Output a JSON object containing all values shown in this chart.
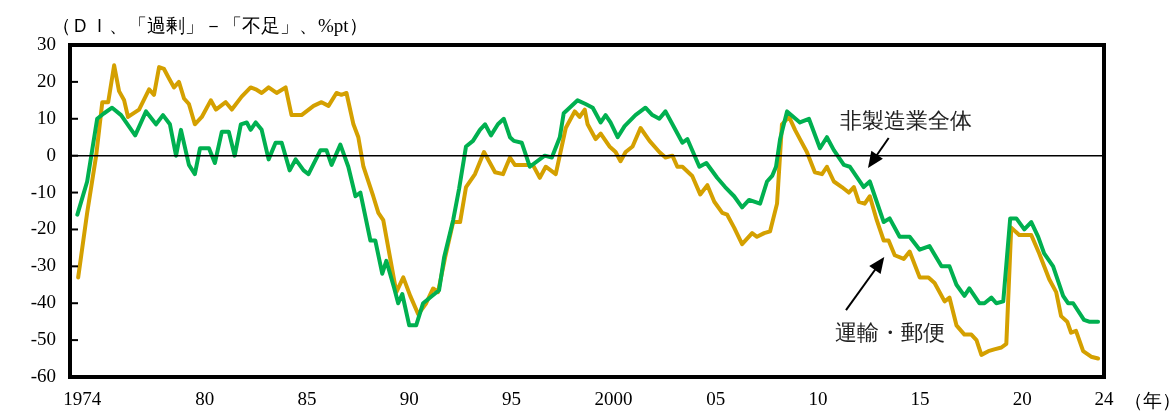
{
  "chart_data": {
    "type": "line",
    "ylabel": "（ＤＩ、「過剰」－「不足」、%pt）",
    "xlabel": "（年）",
    "xlim": [
      1973.4,
      2024
    ],
    "ylim": [
      -60,
      30
    ],
    "yticks": [
      -60,
      -50,
      -40,
      -30,
      -20,
      -10,
      0,
      10,
      20,
      30
    ],
    "xticks": [
      {
        "value": 1974,
        "label": "1974"
      },
      {
        "value": 1980,
        "label": "80"
      },
      {
        "value": 1985,
        "label": "85"
      },
      {
        "value": 1990,
        "label": "90"
      },
      {
        "value": 1995,
        "label": "95"
      },
      {
        "value": 2000,
        "label": "2000"
      },
      {
        "value": 2005,
        "label": "05"
      },
      {
        "value": 2010,
        "label": "10"
      },
      {
        "value": 2015,
        "label": "15"
      },
      {
        "value": 2020,
        "label": "20"
      },
      {
        "value": 2024,
        "label": "24"
      }
    ],
    "ref_lines": [
      {
        "axis": "y",
        "value": 0,
        "color": "#000000"
      }
    ],
    "marker": "none",
    "line_style": "solid",
    "legend": false,
    "series": [
      {
        "name": "非製造業全体",
        "color": "#00b050",
        "x": [
          1973.76,
          1974.24,
          1974.73,
          1975.07,
          1975.46,
          1975.9,
          1976.59,
          1977.12,
          1977.61,
          1977.95,
          1978.29,
          1978.59,
          1978.83,
          1979.22,
          1979.51,
          1979.76,
          1980.2,
          1980.49,
          1980.83,
          1981.17,
          1981.46,
          1981.76,
          1982.05,
          1982.24,
          1982.49,
          1982.78,
          1983.12,
          1983.46,
          1983.76,
          1984.15,
          1984.44,
          1984.83,
          1985.07,
          1985.66,
          1985.95,
          1986.2,
          1986.63,
          1987.02,
          1987.37,
          1987.61,
          1988.1,
          1988.34,
          1988.68,
          1988.88,
          1989.27,
          1989.46,
          1989.66,
          1990.0,
          1990.34,
          1990.68,
          1991.46,
          1991.71,
          1992.15,
          1992.44,
          1992.78,
          1993.12,
          1993.46,
          1993.71,
          1994.0,
          1994.34,
          1994.63,
          1994.93,
          1995.12,
          1995.51,
          1995.9,
          1996.63,
          1996.98,
          1997.37,
          1997.56,
          1997.85,
          1998.24,
          1998.63,
          1998.98,
          1999.37,
          1999.61,
          1999.85,
          2000.2,
          2000.54,
          2001.07,
          2001.56,
          2001.9,
          2002.24,
          2002.54,
          2002.98,
          2003.37,
          2003.61,
          2004.2,
          2004.54,
          2005.07,
          2005.46,
          2005.9,
          2006.29,
          2006.63,
          2007.17,
          2007.51,
          2007.76,
          2007.95,
          2008.15,
          2008.49,
          2009.12,
          2009.56,
          2010.1,
          2010.44,
          2010.78,
          2011.27,
          2011.56,
          2012.24,
          2012.54,
          2013.22,
          2013.51,
          2014.0,
          2014.49,
          2014.98,
          2015.46,
          2016.05,
          2016.44,
          2016.78,
          2017.17,
          2017.41,
          2017.9,
          2018.15,
          2018.49,
          2018.73,
          2019.07,
          2019.41,
          2019.71,
          2020.1,
          2020.44,
          2020.78,
          2021.07,
          2021.51,
          2022.0,
          2022.24,
          2022.49,
          2023.02,
          2023.27,
          2023.71
        ],
        "values": [
          -16,
          -7,
          10,
          11.5,
          13,
          11,
          5.5,
          12,
          8.5,
          11,
          8.5,
          0,
          7,
          -2.5,
          -5,
          2,
          2,
          -2,
          6.5,
          6.5,
          0,
          8.5,
          9,
          7,
          9,
          7,
          -1,
          3.5,
          3.5,
          -4,
          -1,
          -4,
          -5,
          1.5,
          1.5,
          -2.5,
          3,
          -3,
          -11,
          -10,
          -23,
          -23,
          -32,
          -28.5,
          -36,
          -40,
          -37.5,
          -46,
          -46,
          -40,
          -36.5,
          -27.5,
          -17.5,
          -9,
          2.5,
          4,
          7,
          8.5,
          5.5,
          8.5,
          10,
          5,
          4,
          3.5,
          -3,
          0,
          -0.5,
          5,
          11.5,
          13,
          15,
          14,
          13,
          9,
          11,
          9,
          5,
          8,
          11,
          13,
          11,
          10,
          12,
          7.5,
          3.5,
          4.5,
          -3,
          -2,
          -6,
          -8.5,
          -11,
          -14,
          -12,
          -13,
          -7,
          -5.5,
          -3,
          4.5,
          12,
          9,
          10,
          2,
          5,
          1.5,
          -2.5,
          -3,
          -8.5,
          -7,
          -18,
          -17,
          -22,
          -22,
          -25.5,
          -24.5,
          -30,
          -30,
          -35,
          -38,
          -36,
          -40,
          -40,
          -38.5,
          -40,
          -39.5,
          -17,
          -17,
          -20,
          -18,
          -22,
          -26.5,
          -30,
          -38,
          -40,
          -40,
          -44.5,
          -45,
          -45
        ]
      },
      {
        "name": "運輸・郵便",
        "color": "#d4a000",
        "x": [
          1973.8,
          1974.24,
          1974.68,
          1974.98,
          1975.27,
          1975.56,
          1975.8,
          1976.05,
          1976.24,
          1976.78,
          1977.27,
          1977.51,
          1977.76,
          1978.0,
          1978.24,
          1978.49,
          1978.73,
          1978.98,
          1979.22,
          1979.51,
          1979.85,
          1980.29,
          1980.54,
          1981.02,
          1981.32,
          1981.8,
          1982.24,
          1982.49,
          1982.78,
          1983.12,
          1983.51,
          1983.95,
          1984.24,
          1984.73,
          1985.32,
          1985.71,
          1986.05,
          1986.44,
          1986.68,
          1986.93,
          1987.27,
          1987.51,
          1987.76,
          1988.24,
          1988.49,
          1988.73,
          1989.37,
          1989.71,
          1990.05,
          1990.44,
          1990.83,
          1991.17,
          1991.41,
          1991.76,
          1992.15,
          1992.49,
          1992.78,
          1993.22,
          1993.66,
          1994.2,
          1994.59,
          1994.93,
          1995.17,
          1996.05,
          1996.39,
          1996.68,
          1997.17,
          1997.66,
          1998.1,
          1998.34,
          1998.59,
          1998.73,
          1999.12,
          1999.37,
          1999.8,
          2000.1,
          2000.34,
          2000.59,
          2000.93,
          2001.32,
          2001.76,
          2002.24,
          2002.54,
          2002.88,
          2003.12,
          2003.37,
          2003.85,
          2004.24,
          2004.59,
          2004.93,
          2005.32,
          2005.56,
          2005.9,
          2006.29,
          2006.78,
          2007.02,
          2007.37,
          2007.66,
          2008.0,
          2008.24,
          2008.59,
          2008.88,
          2009.12,
          2009.46,
          2009.85,
          2010.2,
          2010.44,
          2010.78,
          2011.17,
          2011.51,
          2011.76,
          2012.0,
          2012.29,
          2012.54,
          2012.88,
          2013.22,
          2013.46,
          2013.76,
          2014.2,
          2014.49,
          2014.98,
          2015.41,
          2015.71,
          2016.2,
          2016.44,
          2016.78,
          2017.17,
          2017.51,
          2017.76,
          2018.0,
          2018.34,
          2018.63,
          2018.98,
          2019.22,
          2019.46,
          2019.85,
          2020.44,
          2020.83,
          2021.32,
          2021.66,
          2021.9,
          2022.2,
          2022.39,
          2022.63,
          2022.98,
          2023.37,
          2023.71
        ],
        "values": [
          -33,
          -15.5,
          0,
          14.5,
          14.5,
          24.5,
          17.5,
          15,
          10.5,
          12.5,
          18,
          16.5,
          24,
          23.5,
          21,
          18.5,
          20,
          15.5,
          14,
          8.5,
          10.5,
          15,
          12.5,
          14.5,
          12.5,
          16,
          18.5,
          18,
          17,
          18.5,
          17,
          18.5,
          11,
          11,
          13.5,
          14.5,
          13.5,
          17,
          16.5,
          17,
          8.5,
          5,
          -3,
          -11,
          -15.5,
          -17.5,
          -37,
          -33,
          -38,
          -43,
          -40,
          -36,
          -37,
          -27.5,
          -18,
          -18,
          -8.5,
          -5,
          1,
          -4.5,
          -5,
          -0.5,
          -2.5,
          -2.5,
          -6,
          -3,
          -5,
          7.5,
          12,
          10.5,
          12.5,
          8.5,
          4.5,
          6,
          2.5,
          1,
          -1.5,
          1,
          2.5,
          7.5,
          4,
          1,
          -0.5,
          0,
          -3,
          -3,
          -5.5,
          -10.5,
          -8,
          -12.5,
          -15.5,
          -16,
          -19.5,
          -24,
          -21,
          -22,
          -21,
          -20.5,
          -13,
          8.5,
          10.5,
          7,
          4.5,
          1,
          -4.5,
          -5,
          -3,
          -7,
          -8.5,
          -10,
          -8.5,
          -12.5,
          -13,
          -11,
          -17.5,
          -23,
          -23,
          -27,
          -28,
          -26,
          -33,
          -33,
          -34.5,
          -39.5,
          -38.5,
          -46,
          -48.5,
          -48.5,
          -50,
          -54,
          -53,
          -52.5,
          -52,
          -51,
          -19.5,
          -21.5,
          -21.5,
          -26.5,
          -33.5,
          -37,
          -43.5,
          -45,
          -48,
          -47.5,
          -53,
          -54.5,
          -55
        ]
      }
    ]
  }
}
